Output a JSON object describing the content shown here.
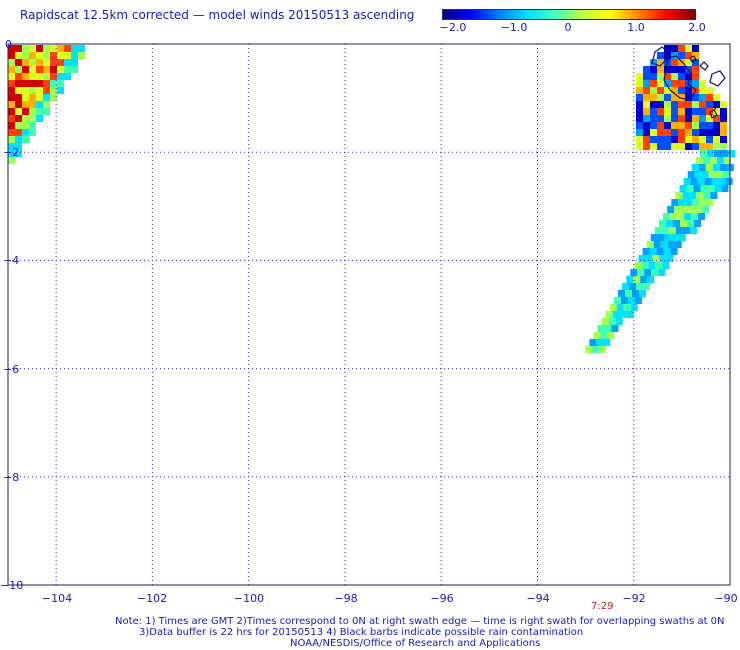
{
  "title": "Rapidscat 12.5km corrected — model winds 20150513 ascending",
  "colorbar": {
    "ticks": [
      "−2.0",
      "−1.0",
      "0",
      "1.0",
      "2.0"
    ],
    "tick_values": [
      -2.0,
      -1.0,
      0,
      1.0,
      2.0
    ],
    "colors": [
      "#000080",
      "#0000ff",
      "#0080ff",
      "#00e0ff",
      "#40ffc0",
      "#c0ff40",
      "#ffff00",
      "#ff8000",
      "#ff0000",
      "#800000"
    ]
  },
  "map": {
    "lon_range": [
      -105,
      -90
    ],
    "lat_range": [
      -10,
      0
    ],
    "lat_ticks": [
      {
        "value": 0,
        "label": "0"
      },
      {
        "value": -2,
        "label": "−2"
      },
      {
        "value": -4,
        "label": "−4"
      },
      {
        "value": -6,
        "label": "−6"
      },
      {
        "value": -8,
        "label": "−8"
      },
      {
        "value": -10,
        "label": "−10"
      }
    ],
    "lon_ticks": [
      {
        "value": -104,
        "label": "−104"
      },
      {
        "value": -102,
        "label": "−102"
      },
      {
        "value": -100,
        "label": "−100"
      },
      {
        "value": -98,
        "label": "−98"
      },
      {
        "value": -96,
        "label": "−96"
      },
      {
        "value": -94,
        "label": "−94"
      },
      {
        "value": -92,
        "label": "−92"
      },
      {
        "value": -90,
        "label": "−90"
      }
    ],
    "grid": "dotted",
    "swath_time": "7:29",
    "swath_colors": [
      "#0000cc",
      "#0050ff",
      "#00a0ff",
      "#00e0ff",
      "#40ffb0",
      "#a0ff50",
      "#e0ff20",
      "#ffb000",
      "#ff4000",
      "#d00000"
    ]
  },
  "notes": [
    "Note: 1) Times are GMT 2)Times correspond to 0N at right swath edge — time is right swath for overlapping swaths at 0N",
    "3)Data buffer is 22 hrs for 20150513 4) Black barbs indicate possible rain contamination",
    "NOAA/NESDIS/Office of Research and Applications"
  ]
}
